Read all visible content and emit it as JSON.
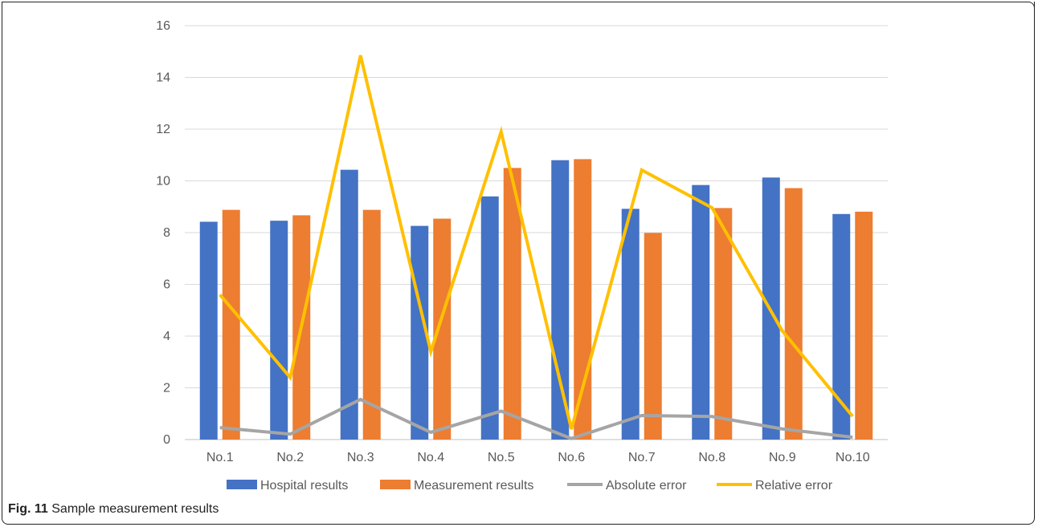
{
  "caption": {
    "label": "Fig. 11",
    "text": "Sample measurement results"
  },
  "chart_data": {
    "type": "bar",
    "title": "",
    "xlabel": "",
    "ylabel": "",
    "categories": [
      "No.1",
      "No.2",
      "No.3",
      "No.4",
      "No.5",
      "No.6",
      "No.7",
      "No.8",
      "No.9",
      "No.10"
    ],
    "ylim": [
      0,
      16
    ],
    "yticks": [
      0,
      2,
      4,
      6,
      8,
      10,
      12,
      14,
      16
    ],
    "grid": true,
    "legend_position": "bottom",
    "series": [
      {
        "name": "Hospital results",
        "kind": "bar",
        "color": "#4472C4",
        "values": [
          8.42,
          8.46,
          10.43,
          8.26,
          9.4,
          10.8,
          8.92,
          9.84,
          10.13,
          8.72
        ]
      },
      {
        "name": "Measurement results",
        "kind": "bar",
        "color": "#ED7D31",
        "values": [
          8.88,
          8.67,
          8.88,
          8.54,
          10.5,
          10.84,
          7.99,
          8.95,
          9.72,
          8.81
        ]
      },
      {
        "name": "Absolute error",
        "kind": "line",
        "color": "#A5A5A5",
        "values": [
          0.46,
          0.21,
          1.55,
          0.28,
          1.1,
          0.04,
          0.93,
          0.89,
          0.41,
          0.09
        ]
      },
      {
        "name": "Relative error",
        "kind": "line",
        "color": "#FFC000",
        "values": [
          5.6,
          2.4,
          14.85,
          3.4,
          11.9,
          0.4,
          10.42,
          8.96,
          4.2,
          0.9
        ]
      }
    ]
  }
}
